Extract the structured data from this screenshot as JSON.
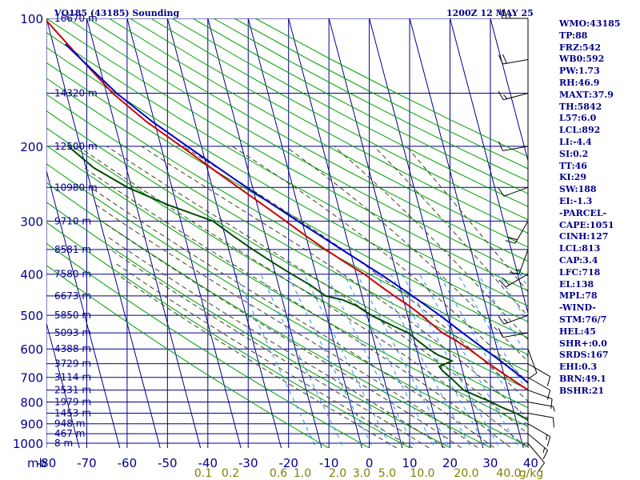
{
  "header": {
    "station": "VQ185 (43185) Sounding",
    "time": "1200Z 12 MAY 25"
  },
  "indices": [
    "WMO:43185",
    "TP:88",
    "FRZ:542",
    "WB0:592",
    "PW:1.73",
    "RH:46.9",
    "MAXT:37.9",
    "TH:5842",
    "L57:6.0",
    "LCL:892",
    "LI:-4.4",
    "SI:0.2",
    "TT:46",
    "KI:29",
    "SW:188",
    "EI:-1.3",
    "-PARCEL-",
    "CAPE:1051",
    "CINH:127",
    "LCL:813",
    "CAP:3.4",
    "LFC:718",
    "EL:138",
    "MPL:78",
    "-WIND-",
    "STM:76/7",
    "HEL:45",
    "SHR+:0.0",
    "SRDS:167",
    "EHI:0.3",
    "BRN:49.1",
    "BSHR:21"
  ],
  "colors": {
    "grid": "#00008b",
    "isotherm": "#00008b",
    "dry_adiabat": "#00a000",
    "moist_adiabat": "#404020",
    "mixing_ratio": "#1e90ff",
    "temperature": "#cc0000",
    "dewpoint": "#004d00",
    "parcel": "#0000cc",
    "wind_barb": "#000000",
    "mixing_ratio_label": "#808000"
  },
  "chart_data": {
    "type": "line",
    "subtype": "skew-t log-p sounding",
    "pressure_axis_unit": "mb",
    "pressure_levels": [
      100,
      200,
      300,
      400,
      500,
      600,
      700,
      800,
      900,
      1000
    ],
    "extra_pressure_lines": [
      150,
      250,
      350,
      450,
      550,
      650,
      750,
      850,
      950
    ],
    "temperature_ticks": [
      -80,
      -70,
      -60,
      -50,
      -40,
      -30,
      -20,
      -10,
      0,
      10,
      20,
      30,
      40
    ],
    "temperature_tick_labels": [
      "-80",
      "-70",
      "-60",
      "-50",
      "-40",
      "-30",
      "-20",
      "-10",
      "0",
      "10",
      "20",
      "30",
      "40"
    ],
    "mixing_ratio_labels": [
      "0.1",
      "0.2",
      "0.6",
      "1.0",
      "2.0",
      "3.0",
      "5.0",
      "10.0",
      "20.0",
      "40.0",
      "g/kg"
    ],
    "height_labels": [
      {
        "p": 100,
        "label": "16670 m"
      },
      {
        "p": 150,
        "label": "14320 m"
      },
      {
        "p": 200,
        "label": "12500 m"
      },
      {
        "p": 250,
        "label": "10980 m"
      },
      {
        "p": 300,
        "label": "9710 m"
      },
      {
        "p": 350,
        "label": "8581 m"
      },
      {
        "p": 400,
        "label": "7580 m"
      },
      {
        "p": 450,
        "label": "6673 m"
      },
      {
        "p": 500,
        "label": "5850 m"
      },
      {
        "p": 550,
        "label": "5093 m"
      },
      {
        "p": 600,
        "label": "4388 m"
      },
      {
        "p": 650,
        "label": "3729 m"
      },
      {
        "p": 700,
        "label": "3114 m"
      },
      {
        "p": 750,
        "label": "2531 m"
      },
      {
        "p": 800,
        "label": "1979 m"
      },
      {
        "p": 850,
        "label": "1453 m"
      },
      {
        "p": 900,
        "label": "948 m"
      },
      {
        "p": 950,
        "label": "467 m"
      },
      {
        "p": 1000,
        "label": "8 m"
      }
    ],
    "series": [
      {
        "key": "temperature",
        "points": [
          [
            1008,
            36.5
          ],
          [
            1000,
            35
          ],
          [
            975,
            32.5
          ],
          [
            950,
            30
          ],
          [
            925,
            28
          ],
          [
            900,
            25.5
          ],
          [
            875,
            23.5
          ],
          [
            850,
            22
          ],
          [
            825,
            20
          ],
          [
            800,
            18
          ],
          [
            750,
            15
          ],
          [
            700,
            11
          ],
          [
            650,
            7
          ],
          [
            600,
            3
          ],
          [
            575,
            0.5
          ],
          [
            550,
            -2.5
          ],
          [
            525,
            -4.5
          ],
          [
            500,
            -6.5
          ],
          [
            475,
            -9
          ],
          [
            450,
            -12
          ],
          [
            425,
            -15
          ],
          [
            400,
            -18
          ],
          [
            375,
            -22
          ],
          [
            350,
            -26
          ],
          [
            325,
            -30
          ],
          [
            300,
            -34
          ],
          [
            275,
            -38.5
          ],
          [
            250,
            -43.5
          ],
          [
            225,
            -49
          ],
          [
            200,
            -55
          ],
          [
            175,
            -62
          ],
          [
            150,
            -68.5
          ],
          [
            125,
            -74
          ],
          [
            100,
            -80.5
          ]
        ]
      },
      {
        "key": "dewpoint",
        "points": [
          [
            1008,
            26
          ],
          [
            1000,
            25
          ],
          [
            975,
            21
          ],
          [
            950,
            18
          ],
          [
            925,
            17
          ],
          [
            900,
            14
          ],
          [
            875,
            12.5
          ],
          [
            850,
            10.5
          ],
          [
            825,
            7.5
          ],
          [
            800,
            5
          ],
          [
            775,
            2
          ],
          [
            750,
            -1
          ],
          [
            700,
            -3.5
          ],
          [
            675,
            -5
          ],
          [
            660,
            -5.5
          ],
          [
            640,
            -2
          ],
          [
            620,
            -5
          ],
          [
            600,
            -7
          ],
          [
            575,
            -9
          ],
          [
            550,
            -11
          ],
          [
            525,
            -15
          ],
          [
            500,
            -19
          ],
          [
            475,
            -22
          ],
          [
            460,
            -25
          ],
          [
            450,
            -29
          ],
          [
            425,
            -32
          ],
          [
            400,
            -36
          ],
          [
            375,
            -40
          ],
          [
            350,
            -44
          ],
          [
            325,
            -48
          ],
          [
            300,
            -52
          ],
          [
            275,
            -62
          ],
          [
            250,
            -71
          ],
          [
            225,
            -78
          ],
          [
            200,
            -83
          ]
        ]
      },
      {
        "key": "parcel",
        "points": [
          [
            1008,
            35.5
          ],
          [
            1000,
            34
          ],
          [
            975,
            31
          ],
          [
            950,
            28.2
          ],
          [
            925,
            26.5
          ],
          [
            900,
            24.5
          ],
          [
            875,
            23
          ],
          [
            850,
            21.8
          ],
          [
            825,
            20.5
          ],
          [
            800,
            19.3
          ],
          [
            750,
            17
          ],
          [
            700,
            14.2
          ],
          [
            650,
            10.8
          ],
          [
            600,
            6.8
          ],
          [
            550,
            2.5
          ],
          [
            500,
            -2
          ],
          [
            450,
            -7.5
          ],
          [
            400,
            -14
          ],
          [
            350,
            -22
          ],
          [
            300,
            -31
          ],
          [
            250,
            -41.5
          ],
          [
            200,
            -53.5
          ],
          [
            175,
            -60.5
          ],
          [
            150,
            -67.5
          ],
          [
            125,
            -74
          ],
          [
            115,
            -77
          ]
        ]
      }
    ],
    "wind_barbs": [
      {
        "p": 100,
        "dir": 270,
        "spd": 25
      },
      {
        "p": 125,
        "dir": 260,
        "spd": 20
      },
      {
        "p": 150,
        "dir": 255,
        "spd": 15
      },
      {
        "p": 200,
        "dir": 260,
        "spd": 10
      },
      {
        "p": 250,
        "dir": 250,
        "spd": 10
      },
      {
        "p": 300,
        "dir": 210,
        "spd": 20
      },
      {
        "p": 350,
        "dir": 200,
        "spd": 15
      },
      {
        "p": 400,
        "dir": 240,
        "spd": 20
      },
      {
        "p": 500,
        "dir": 250,
        "spd": 15
      },
      {
        "p": 550,
        "dir": 260,
        "spd": 10
      },
      {
        "p": 600,
        "dir": 160,
        "spd": 10
      },
      {
        "p": 650,
        "dir": 120,
        "spd": 10
      },
      {
        "p": 700,
        "dir": 120,
        "spd": 10
      },
      {
        "p": 750,
        "dir": 110,
        "spd": 10
      },
      {
        "p": 800,
        "dir": 100,
        "spd": 5
      },
      {
        "p": 850,
        "dir": 100,
        "spd": 10
      },
      {
        "p": 900,
        "dir": 120,
        "spd": 15
      },
      {
        "p": 950,
        "dir": 130,
        "spd": 15
      },
      {
        "p": 1000,
        "dir": 140,
        "spd": 10
      }
    ]
  }
}
